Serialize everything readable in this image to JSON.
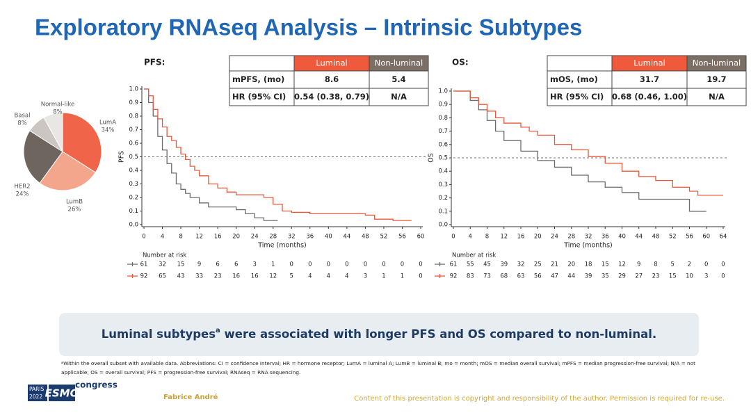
{
  "title": "Exploratory RNAseq Analysis – Intrinsic Subtypes",
  "chart_data": [
    {
      "type": "pie",
      "categories": [
        "LumA",
        "LumB",
        "HER2",
        "Basal",
        "Normal-like"
      ],
      "values": [
        34,
        26,
        24,
        8,
        8
      ],
      "value_labels": [
        "34%",
        "26%",
        "24%",
        "8%",
        "8%"
      ],
      "colors": [
        "#f0654a",
        "#f4a68c",
        "#6e655e",
        "#cbc6c1",
        "#e9e7e4"
      ]
    },
    {
      "type": "line",
      "title": "PFS:",
      "xlabel": "Time (months)",
      "ylabel": "PFS",
      "xlim": [
        0,
        60
      ],
      "xticks": [
        0,
        4,
        8,
        12,
        16,
        20,
        24,
        28,
        32,
        36,
        40,
        44,
        48,
        52,
        56,
        60
      ],
      "ylim": [
        0,
        1
      ],
      "yticks": [
        {
          "value": 0,
          "label": "0.0"
        },
        0.1,
        0.2,
        0.3,
        0.4,
        0.5,
        0.6,
        0.7,
        0.8,
        0.9,
        {
          "value": 1,
          "label": "1.0"
        }
      ],
      "reference_line": 0.5,
      "step": true,
      "series": [
        {
          "color": "#6b6b6b",
          "x": [
            0,
            1,
            2,
            3,
            4,
            5,
            6,
            7,
            8,
            9,
            10,
            12,
            14,
            20,
            22,
            24,
            26,
            29
          ],
          "values": [
            1.0,
            0.9,
            0.8,
            0.65,
            0.55,
            0.45,
            0.38,
            0.3,
            0.26,
            0.23,
            0.2,
            0.16,
            0.13,
            0.11,
            0.08,
            0.05,
            0.03,
            0.03
          ]
        },
        {
          "color": "#e8583a",
          "x": [
            0,
            1,
            2,
            3,
            4,
            5,
            6,
            7,
            8,
            9,
            10,
            11,
            12,
            14,
            16,
            18,
            20,
            26,
            28,
            30,
            32,
            36,
            48,
            50,
            54,
            58
          ],
          "values": [
            1.0,
            0.95,
            0.85,
            0.78,
            0.72,
            0.65,
            0.62,
            0.57,
            0.52,
            0.48,
            0.43,
            0.4,
            0.36,
            0.3,
            0.27,
            0.24,
            0.22,
            0.2,
            0.15,
            0.1,
            0.09,
            0.08,
            0.07,
            0.04,
            0.03,
            0.03
          ]
        }
      ],
      "table": {
        "header": [
          "Luminal",
          "Non-luminal"
        ],
        "rows": [
          [
            "mPFS, (mo)",
            "8.6",
            "5.4"
          ],
          [
            "HR (95% CI)",
            "0.54 (0.38, 0.79)",
            "N/A"
          ]
        ]
      },
      "at_risk": {
        "label": "Number at risk",
        "rows": [
          [
            61,
            32,
            15,
            9,
            6,
            6,
            3,
            1,
            0,
            0,
            0,
            0,
            0,
            0,
            0,
            0
          ],
          [
            92,
            65,
            43,
            33,
            23,
            16,
            16,
            12,
            5,
            4,
            4,
            4,
            3,
            1,
            1,
            0
          ]
        ]
      }
    },
    {
      "type": "line",
      "title": "OS:",
      "xlabel": "Time (months)",
      "ylabel": "OS",
      "xlim": [
        0,
        64
      ],
      "xticks": [
        0,
        4,
        8,
        12,
        16,
        20,
        24,
        28,
        32,
        36,
        40,
        44,
        48,
        52,
        56,
        60,
        64
      ],
      "ylim": [
        0,
        1
      ],
      "yticks": [
        {
          "value": 0,
          "label": "0.0"
        },
        0.1,
        0.2,
        0.3,
        0.4,
        0.5,
        0.6,
        0.7,
        0.8,
        0.9,
        {
          "value": 1,
          "label": "1.0"
        }
      ],
      "reference_line": 0.5,
      "step": true,
      "series": [
        {
          "color": "#6b6b6b",
          "x": [
            0,
            4,
            6,
            8,
            10,
            12,
            16,
            20,
            24,
            28,
            32,
            36,
            40,
            44,
            52,
            56,
            60
          ],
          "values": [
            1.0,
            0.93,
            0.86,
            0.78,
            0.7,
            0.63,
            0.55,
            0.48,
            0.43,
            0.37,
            0.32,
            0.28,
            0.24,
            0.19,
            0.19,
            0.1,
            0.1
          ]
        },
        {
          "color": "#e8583a",
          "x": [
            0,
            4,
            6,
            8,
            10,
            12,
            16,
            18,
            20,
            24,
            28,
            32,
            36,
            40,
            44,
            48,
            52,
            56,
            58,
            64
          ],
          "values": [
            1.0,
            0.95,
            0.9,
            0.85,
            0.8,
            0.76,
            0.73,
            0.7,
            0.67,
            0.6,
            0.56,
            0.51,
            0.46,
            0.4,
            0.36,
            0.33,
            0.28,
            0.25,
            0.22,
            0.22
          ]
        }
      ],
      "table": {
        "header": [
          "Luminal",
          "Non-luminal"
        ],
        "rows": [
          [
            "mOS, (mo)",
            "31.7",
            "19.7"
          ],
          [
            "HR (95% CI)",
            "0.68 (0.46, 1.00)",
            "N/A"
          ]
        ]
      },
      "at_risk": {
        "label": "Number at risk",
        "rows": [
          [
            61,
            55,
            45,
            39,
            32,
            25,
            21,
            20,
            18,
            15,
            12,
            9,
            8,
            5,
            2,
            0,
            0
          ],
          [
            92,
            83,
            73,
            68,
            63,
            56,
            47,
            44,
            39,
            35,
            29,
            27,
            23,
            15,
            10,
            3,
            0
          ]
        ]
      }
    }
  ],
  "banner": {
    "before": "Luminal subtypes",
    "marker": "a",
    "after": " were associated with longer PFS and OS compared to non-luminal."
  },
  "footnote": {
    "marker": "a",
    "line1": "Within the overall subset with available data. Abbreviations: CI = confidence interval; HR = hormone receptor; LumA = luminal A; LumB = luminal B; mo = month; mOS = median overall survival; mPFS = median progression-free survival; N/A = not",
    "line2": "applicable; OS = overall survival; PFS = progression-free survival; RNAseq = RNA sequencing."
  },
  "footer": {
    "city": "PARIS",
    "year": "2022",
    "logo": "ESMO",
    "event": "congress",
    "author": "Fabrice André",
    "copyright": "Content of this presentation is copyright and responsibility of the author. Permission is required for re-use."
  }
}
